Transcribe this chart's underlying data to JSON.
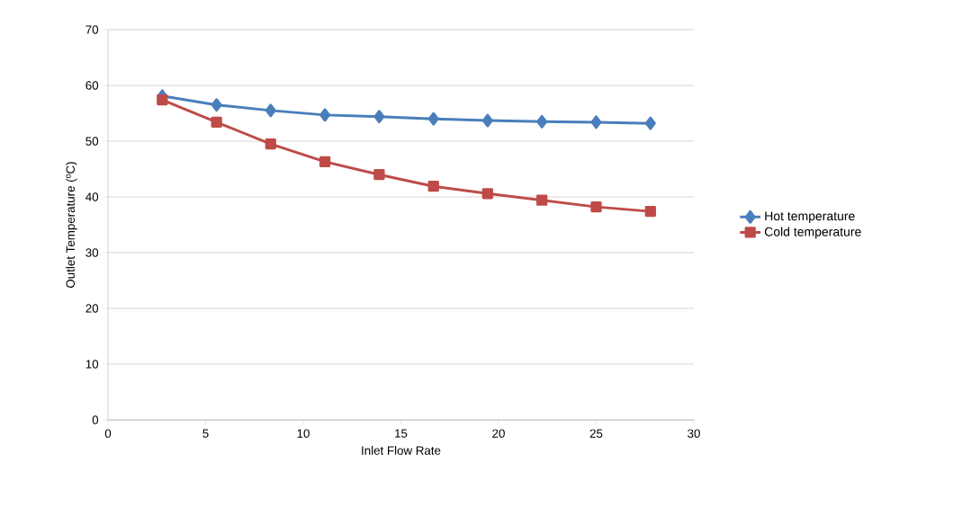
{
  "chart_data": {
    "type": "line",
    "xlabel": "Inlet Flow Rate",
    "ylabel": "Outlet Temperature (ºC)",
    "xlim": [
      0,
      30
    ],
    "xticks": [
      0,
      5,
      10,
      15,
      20,
      25,
      30
    ],
    "ylim": [
      0,
      70
    ],
    "yticks": [
      0,
      10,
      20,
      30,
      40,
      50,
      60,
      70
    ],
    "grid": "y",
    "legend": "right",
    "line_style": "solid",
    "x": [
      2.78,
      5.56,
      8.33,
      11.11,
      13.89,
      16.67,
      19.44,
      22.22,
      25.0,
      27.78
    ],
    "series": [
      {
        "name": "Hot temperature",
        "color": "#4a7ebb",
        "marker": "diamond",
        "values": [
          58.1,
          56.5,
          55.5,
          54.7,
          54.4,
          54.0,
          53.7,
          53.5,
          53.4,
          53.2
        ]
      },
      {
        "name": "Cold temperature",
        "color": "#be4b48",
        "marker": "square",
        "values": [
          57.4,
          53.4,
          49.5,
          46.3,
          44.0,
          41.9,
          40.6,
          39.4,
          38.2,
          37.4
        ]
      }
    ]
  }
}
